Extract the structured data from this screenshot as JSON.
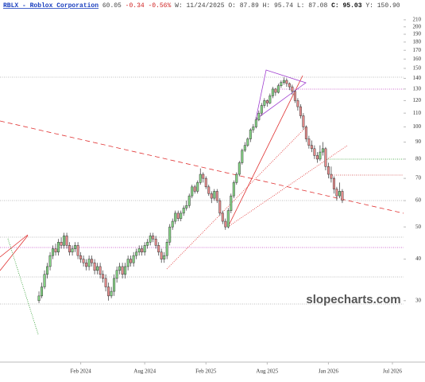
{
  "chart_data": {
    "type": "candlestick",
    "title": "RBLX - Roblox Corporation",
    "quote": [
      "60.05",
      "-0.34 -0.56%",
      "W: 11/24/2025",
      "O:",
      "87.89",
      "H:",
      "95.74",
      "L:",
      "87.08",
      "C:",
      "95.03",
      "Y:",
      "150.90"
    ],
    "watermark": "slopecharts.com",
    "log_scale": true,
    "up_color": "#86d886",
    "down_color": "#ec8f8f",
    "edge_color": "#333",
    "ylim": [
      19.6,
      223
    ],
    "yticks": [
      30,
      40,
      50,
      60,
      70,
      80,
      90,
      100,
      110,
      120,
      130,
      140,
      150,
      160,
      170,
      180,
      190,
      200,
      210
    ],
    "xlim": [
      -14,
      131
    ],
    "xticks": [
      {
        "value": 15,
        "label": "Feb 2024"
      },
      {
        "value": 38,
        "label": "Aug 2024"
      },
      {
        "value": 60,
        "label": "Feb 2025"
      },
      {
        "value": 82,
        "label": "Aug 2025"
      },
      {
        "value": 104,
        "label": "Jan 2026"
      },
      {
        "value": 127,
        "label": "Jul 2026"
      }
    ],
    "candles": [
      [
        30,
        32,
        29.5,
        31
      ],
      [
        31,
        34,
        30.5,
        33
      ],
      [
        33,
        37,
        32.5,
        36
      ],
      [
        36,
        39,
        35,
        38
      ],
      [
        38,
        42,
        37,
        41
      ],
      [
        41,
        44,
        40,
        43
      ],
      [
        43,
        44.5,
        41,
        42
      ],
      [
        42,
        46,
        41,
        45
      ],
      [
        45,
        46.5,
        43,
        44
      ],
      [
        44,
        48,
        43,
        47
      ],
      [
        47,
        48,
        43,
        44
      ],
      [
        44,
        45,
        41,
        42
      ],
      [
        42,
        44,
        41,
        43
      ],
      [
        43,
        45,
        42,
        44
      ],
      [
        44,
        45,
        40,
        41
      ],
      [
        41,
        42,
        39,
        40
      ],
      [
        40,
        41,
        38,
        39
      ],
      [
        39,
        40,
        37,
        38
      ],
      [
        38,
        41,
        37,
        40
      ],
      [
        40,
        41,
        38,
        39
      ],
      [
        39,
        40,
        36,
        37
      ],
      [
        37,
        39,
        36,
        38
      ],
      [
        38,
        39,
        35,
        36
      ],
      [
        36,
        37,
        34,
        35
      ],
      [
        35,
        36,
        32,
        33
      ],
      [
        33,
        34,
        30,
        31
      ],
      [
        31,
        33,
        30.5,
        32
      ],
      [
        32,
        36,
        31,
        35
      ],
      [
        35,
        38,
        34,
        37
      ],
      [
        37,
        39,
        36,
        38
      ],
      [
        38,
        39,
        35,
        36
      ],
      [
        36,
        39,
        35,
        38
      ],
      [
        38,
        41,
        37,
        40
      ],
      [
        40,
        41,
        38,
        39
      ],
      [
        39,
        42,
        38,
        41
      ],
      [
        41,
        43,
        40,
        42
      ],
      [
        42,
        44,
        41,
        43
      ],
      [
        43,
        44,
        41,
        42
      ],
      [
        42,
        45,
        41,
        44
      ],
      [
        44,
        46,
        43,
        45
      ],
      [
        45,
        48,
        44,
        47
      ],
      [
        47,
        48,
        45,
        46
      ],
      [
        46,
        47,
        43,
        44
      ],
      [
        44,
        45,
        41,
        42
      ],
      [
        42,
        43,
        39,
        40
      ],
      [
        40,
        42,
        39,
        41
      ],
      [
        41,
        46,
        40,
        45
      ],
      [
        45,
        51,
        44,
        50
      ],
      [
        50,
        53,
        49,
        52
      ],
      [
        52,
        56,
        51,
        55
      ],
      [
        55,
        56,
        52,
        53
      ],
      [
        53,
        56,
        52,
        55
      ],
      [
        55,
        58,
        54,
        57
      ],
      [
        57,
        60,
        56,
        58
      ],
      [
        58,
        63,
        57,
        62
      ],
      [
        62,
        67,
        61,
        66
      ],
      [
        66,
        67,
        63,
        64
      ],
      [
        64,
        69,
        63,
        68
      ],
      [
        68,
        75,
        67,
        72
      ],
      [
        72,
        73,
        68,
        70
      ],
      [
        70,
        71,
        65,
        66
      ],
      [
        66,
        67,
        62,
        63
      ],
      [
        63,
        64,
        59,
        61
      ],
      [
        61,
        65,
        60,
        64
      ],
      [
        64,
        65,
        59,
        60
      ],
      [
        60,
        61,
        54,
        55
      ],
      [
        55,
        56,
        51,
        52
      ],
      [
        52,
        53,
        49,
        50
      ],
      [
        50,
        57,
        49.5,
        56
      ],
      [
        56,
        63,
        55,
        62
      ],
      [
        62,
        69,
        61,
        68
      ],
      [
        68,
        73,
        67,
        72
      ],
      [
        72,
        79,
        71,
        78
      ],
      [
        78,
        86,
        77,
        85
      ],
      [
        85,
        90,
        84,
        88
      ],
      [
        88,
        93,
        87,
        92
      ],
      [
        92,
        99,
        90,
        98
      ],
      [
        98,
        102,
        96,
        100
      ],
      [
        100,
        107,
        99,
        105
      ],
      [
        105,
        112,
        104,
        110
      ],
      [
        110,
        118,
        108,
        116
      ],
      [
        116,
        122,
        114,
        120
      ],
      [
        120,
        121,
        115,
        118
      ],
      [
        118,
        126,
        117,
        124
      ],
      [
        124,
        132,
        122,
        130
      ],
      [
        130,
        131,
        124,
        127
      ],
      [
        127,
        135,
        126,
        133
      ],
      [
        133,
        138,
        131,
        136
      ],
      [
        136,
        141,
        134,
        138
      ],
      [
        138,
        140,
        132,
        135
      ],
      [
        135,
        136,
        129,
        132
      ],
      [
        132,
        134,
        125,
        128
      ],
      [
        128,
        129,
        118,
        120
      ],
      [
        120,
        122,
        112,
        115
      ],
      [
        115,
        117,
        106,
        108
      ],
      [
        108,
        110,
        98,
        100
      ],
      [
        100,
        101,
        90,
        92
      ],
      [
        92,
        94,
        86,
        88
      ],
      [
        88,
        91,
        84,
        86
      ],
      [
        86,
        88,
        80,
        82
      ],
      [
        82,
        84,
        78,
        80
      ],
      [
        80,
        88,
        79,
        84
      ],
      [
        84,
        90,
        82,
        86
      ],
      [
        86,
        87,
        74,
        76
      ],
      [
        76,
        78,
        70,
        72
      ],
      [
        72,
        76,
        68,
        70
      ],
      [
        70,
        71,
        63,
        65
      ],
      [
        65,
        66,
        60,
        62
      ],
      [
        62,
        68,
        61,
        64
      ],
      [
        64,
        65,
        59,
        60.05
      ]
    ]
  }
}
